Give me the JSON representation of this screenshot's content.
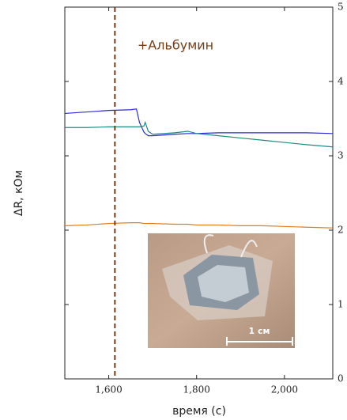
{
  "chart_data": {
    "type": "line",
    "annotation": "+Альбумин",
    "annotation_color": "#7a3b12",
    "xlabel": "время (с)",
    "ylabel": "ΔR, кОм",
    "x": [
      1500,
      1550,
      1600,
      1650,
      1663,
      1670,
      1680,
      1683,
      1690,
      1700,
      1750,
      1780,
      1800,
      1850,
      1900,
      1950,
      2000,
      2050,
      2110
    ],
    "series": [
      {
        "color": "#2a2ad6",
        "values": [
          3.57,
          3.59,
          3.61,
          3.62,
          3.63,
          3.45,
          3.32,
          3.3,
          3.27,
          3.27,
          3.29,
          3.3,
          3.3,
          3.31,
          3.31,
          3.31,
          3.31,
          3.31,
          3.3
        ]
      },
      {
        "color": "#1f8a80",
        "values": [
          3.38,
          3.38,
          3.39,
          3.39,
          3.39,
          3.39,
          3.4,
          3.45,
          3.33,
          3.29,
          3.31,
          3.33,
          3.3,
          3.27,
          3.24,
          3.21,
          3.18,
          3.15,
          3.12
        ]
      },
      {
        "color": "#e07b1a",
        "values": [
          2.06,
          2.07,
          2.09,
          2.1,
          2.1,
          2.1,
          2.09,
          2.09,
          2.09,
          2.09,
          2.08,
          2.08,
          2.07,
          2.07,
          2.06,
          2.06,
          2.05,
          2.04,
          2.03
        ]
      }
    ],
    "vline": 1614,
    "vline_color": "#7a3b12",
    "xlim": [
      1500,
      2110
    ],
    "ylim": [
      0,
      5
    ],
    "xticks": [
      {
        "value": 1600,
        "label": "1,600"
      },
      {
        "value": 1800,
        "label": "1,800"
      },
      {
        "value": 2000,
        "label": "2,000"
      }
    ],
    "yticks": [
      0,
      1,
      2,
      3,
      4,
      5
    ],
    "y_axis_side": "right",
    "inset_scale_label": "1 см"
  }
}
